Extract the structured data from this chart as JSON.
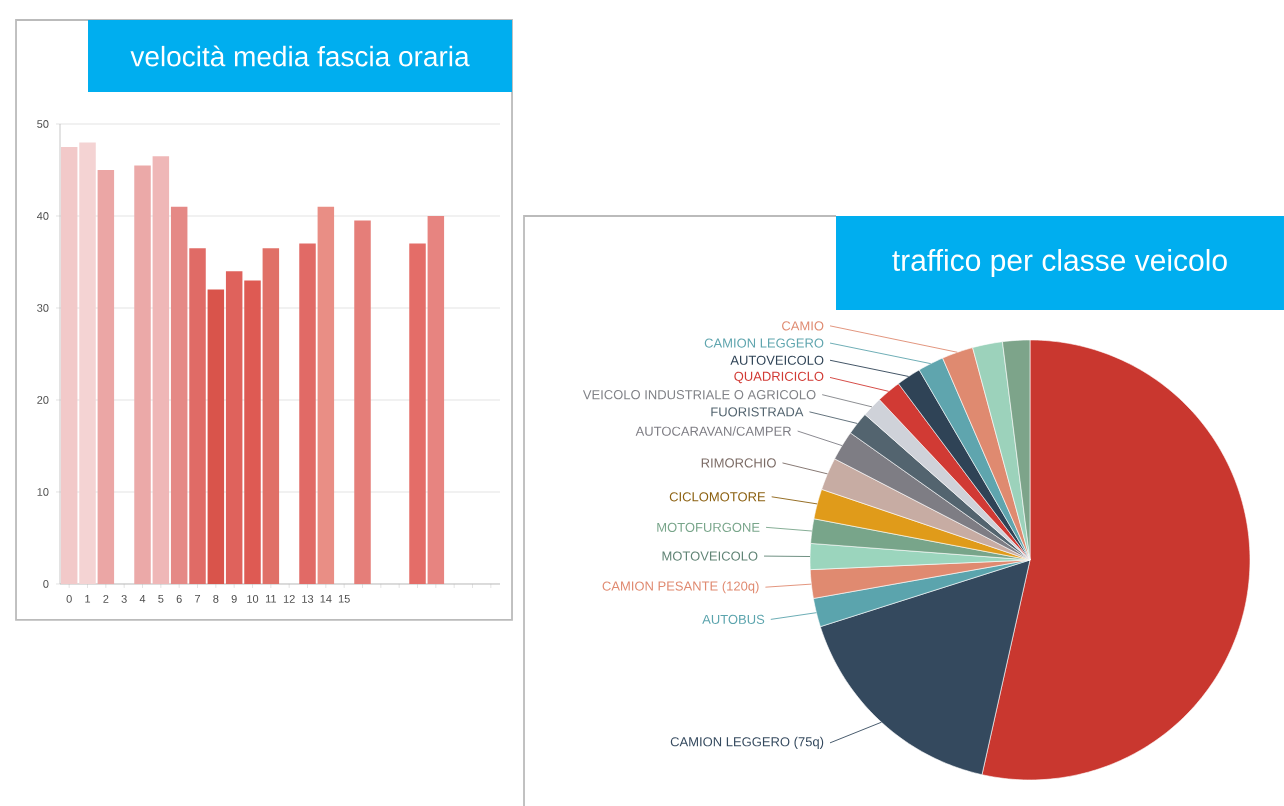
{
  "chart_data": [
    {
      "type": "bar",
      "title": "velocità media fascia oraria",
      "categories": [
        "0",
        "1",
        "2",
        "3",
        "4",
        "5",
        "6",
        "7",
        "8",
        "9",
        "10",
        "11",
        "12",
        "13",
        "14",
        "15",
        null,
        null,
        null,
        null,
        null,
        null,
        null,
        null
      ],
      "values": [
        47.5,
        48,
        45,
        null,
        45.5,
        46.5,
        41,
        36.5,
        32,
        34,
        33,
        36.5,
        null,
        37,
        41,
        null,
        39.5,
        null,
        null,
        37,
        40,
        null,
        null,
        null
      ],
      "colors": [
        "#f2c9c9",
        "#f4d3d3",
        "#eba6a5",
        null,
        "#eba9a8",
        "#efb7b7",
        "#e58986",
        "#e06b66",
        "#d9544b",
        "#df625c",
        "#de5a53",
        "#e07067",
        null,
        "#e16a66",
        "#e98e85",
        null,
        "#e57e79",
        null,
        null,
        "#e46d68",
        "#e78480",
        null,
        null,
        null
      ],
      "ylim": [
        0,
        50
      ],
      "yticks": [
        0,
        10,
        20,
        30,
        40,
        50
      ],
      "grid": "y"
    },
    {
      "type": "pie",
      "title": "traffico per classe veicolo",
      "categories": [
        null,
        "CAMION LEGGERO (75q)",
        "AUTOBUS",
        "CAMION PESANTE (120q)",
        "MOTOVEICOLO",
        "MOTOFURGONE",
        "CICLOMOTORE",
        "RIMORCHIO",
        "AUTOCARAVAN/CAMPER",
        "FUORISTRADA",
        "VEICOLO INDUSTRIALE O AGRICOLO",
        "QUADRICICLO",
        "AUTOVEICOLO",
        "CAMION LEGGERO",
        "CAMIO",
        null,
        null
      ],
      "values": [
        53.5,
        16.6,
        2.1,
        2.1,
        1.9,
        1.8,
        2.2,
        2.4,
        2.2,
        1.7,
        1.5,
        1.8,
        1.8,
        1.9,
        2.3,
        2.2,
        2.0
      ],
      "colors": [
        "#c9372f",
        "#34495e",
        "#5ba4ad",
        "#e08a70",
        "#9bd5bd",
        "#78a58a",
        "#e09b1a",
        "#c7aca3",
        "#7e7d84",
        "#53646f",
        "#cfd2d9",
        "#d13a34",
        "#2f4356",
        "#5fa5ae",
        "#df8a70",
        "#9cd2bb",
        "#7da48a"
      ]
    }
  ]
}
